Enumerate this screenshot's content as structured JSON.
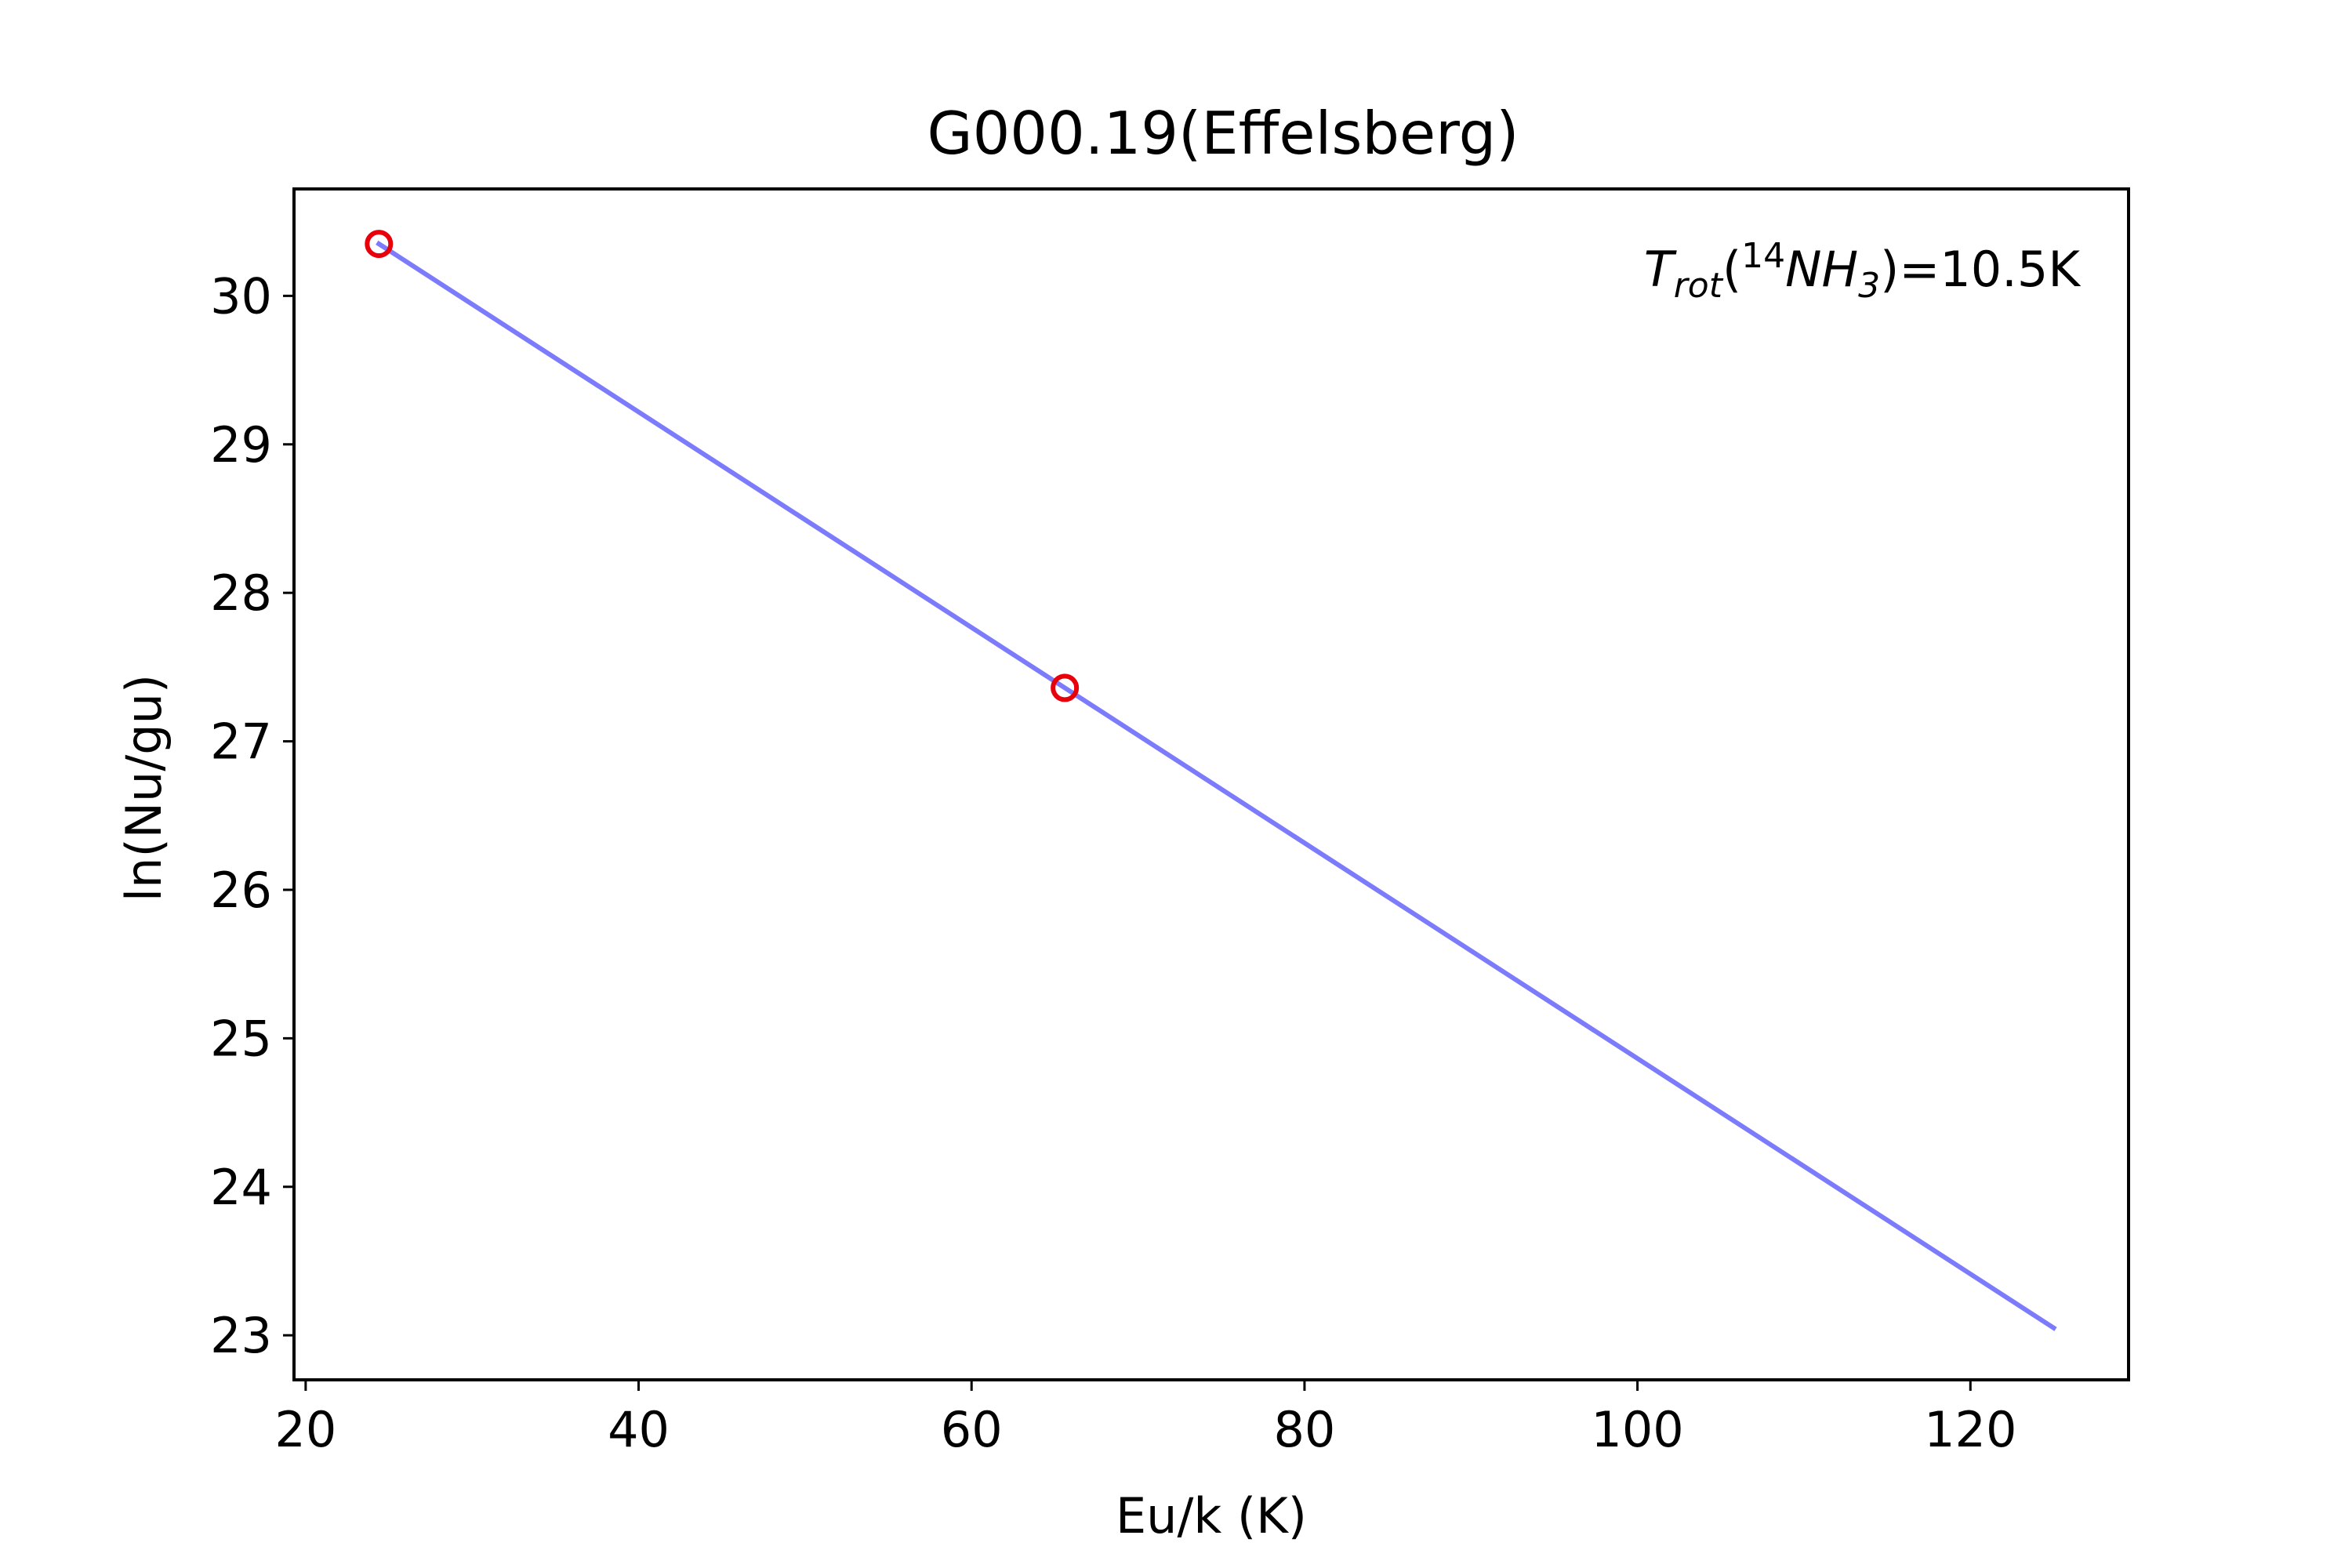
{
  "chart_data": {
    "type": "scatter",
    "title": "G000.19(Effelsberg)",
    "xlabel": "Eu/k (K)",
    "ylabel": "ln(Nu/gu)",
    "xlim": [
      19.3,
      129.5
    ],
    "ylim": [
      22.7,
      30.72
    ],
    "x_ticks": [
      20,
      40,
      60,
      80,
      100,
      120
    ],
    "y_ticks": [
      23,
      24,
      25,
      26,
      27,
      28,
      29,
      30
    ],
    "grid": false,
    "points": {
      "x": [
        24.4,
        65.6
      ],
      "y": [
        30.35,
        27.36
      ],
      "marker": "open-circle",
      "color": "#e8000b"
    },
    "fit_line": {
      "x": [
        24.4,
        125.0
      ],
      "y": [
        30.35,
        23.05
      ],
      "color": "#7b7bfb"
    },
    "annotation": {
      "T": "T",
      "rot": "rot",
      "open": "(",
      "sup14": "14",
      "NH": "NH",
      "sub3": "3",
      "value": ")=10.5K"
    }
  }
}
